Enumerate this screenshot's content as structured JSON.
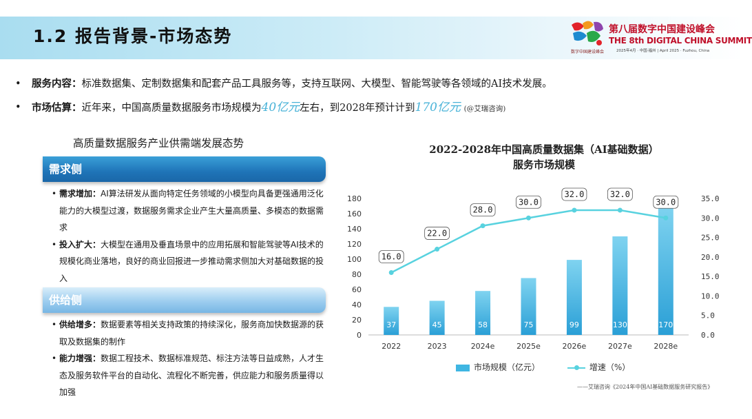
{
  "header": {
    "title": "1.2 报告背景-市场态势",
    "logo": {
      "sub_text": "数字中国建设峰会",
      "cn_title": "第八届数字中国建设峰会",
      "en_title": "THE 8th DIGITAL CHINA SUMMIT",
      "date_text": "2025年4月 · 中国·福州 | April 2025 · Fuzhou, China"
    }
  },
  "bullets": [
    {
      "bullet": "•",
      "label": "服务内容：",
      "text": "标准数据集、定制数据集和配套产品工具服务等，支持互联网、大模型、智能驾驶等各领域的AI技术发展。"
    },
    {
      "bullet": "•",
      "label": "市场估算：",
      "text_a": "近年来，中国高质量数据服务市场规模为",
      "highlight_a": "40亿元",
      "text_b": "左右，到2028年预计计到",
      "highlight_b": "170亿元",
      "source": "(@艾瑞咨询)"
    }
  ],
  "left_panel": {
    "title": "高质量数据服务产业供需端发展态势",
    "demand": {
      "header": "需求侧",
      "items": [
        {
          "label": "需求增加：",
          "text": "AI算法研发从面向特定任务领域的小模型向具备更强通用泛化能力的大模型过渡，数据服务需求企业产生大量高质量、多模态的数据需求"
        },
        {
          "label": "投入扩大：",
          "text": "大模型在通用及垂直场景中的应用拓展和智能驾驶等AI技术的规模化商业落地，良好的商业回报进一步推动需求侧加大对基础数据的投入"
        }
      ]
    },
    "supply": {
      "header": "供给侧",
      "items": [
        {
          "label": "供给增多：",
          "text": "数据要素等相关支持政策的持续深化，服务商加快数据源的获取及数据集的制作"
        },
        {
          "label": "能力增强：",
          "text": "数据工程技术、数据标准规范、标注方法等日益成熟，人才生态及服务软件平台的自动化、流程化不断完善，供应能力和服务质量得以加强"
        }
      ]
    }
  },
  "chart": {
    "title_line1": "2022-2028年中国高质量数据集（AI基础数据）",
    "title_line2": "服务市场规模",
    "legend_bar": "市场规模（亿元）",
    "legend_line": "增速（%）",
    "source": "——艾瑞咨询《2024年中国AI基础数据服务研究报告》"
  },
  "chart_data": {
    "type": "bar",
    "title": "2022-2028年中国高质量数据集（AI基础数据）服务市场规模",
    "categories": [
      "2022",
      "2023",
      "2024e",
      "2025e",
      "2026e",
      "2027e",
      "2028e"
    ],
    "series": [
      {
        "name": "市场规模（亿元）",
        "type": "bar",
        "axis": "left",
        "values": [
          37,
          45,
          58,
          75,
          99,
          130,
          170
        ]
      },
      {
        "name": "增速（%）",
        "type": "line",
        "axis": "right",
        "values": [
          16.0,
          22.0,
          28.0,
          30.0,
          32.0,
          32.0,
          30.0
        ]
      }
    ],
    "ylim_left": [
      0,
      180
    ],
    "yticks_left": [
      "0",
      "20",
      "40",
      "60",
      "80",
      "100",
      "120",
      "140",
      "160",
      "180"
    ],
    "ylim_right": [
      0,
      35
    ],
    "yticks_right": [
      "0.0",
      "5.0",
      "10.0",
      "15.0",
      "20.0",
      "25.0",
      "30.0",
      "35.0"
    ],
    "bar_labels": [
      "37",
      "45",
      "58",
      "75",
      "99",
      "130",
      "170"
    ],
    "line_labels": [
      "16.0",
      "22.0",
      "28.0",
      "30.0",
      "32.0",
      "32.0",
      "30.0"
    ],
    "colors": {
      "bar_top": "#7fd3f0",
      "bar_bottom": "#2a9fd6",
      "line": "#58d2df"
    },
    "legend": "bottom"
  }
}
